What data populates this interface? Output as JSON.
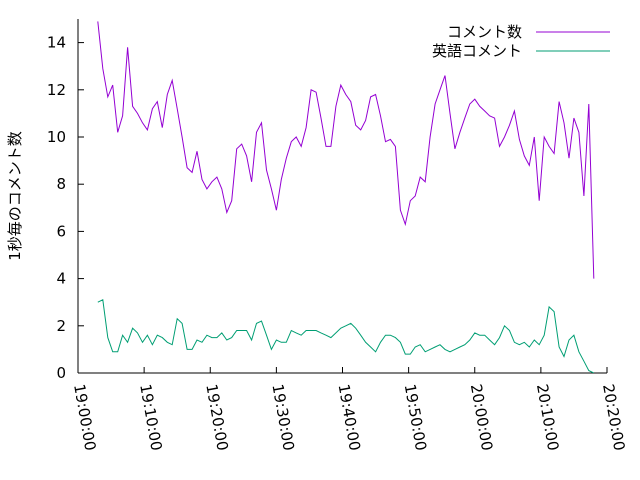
{
  "chart_data": {
    "type": "line",
    "y_label": "1秒毎のコメント数",
    "x": [
      "19:03:00",
      "19:03:45",
      "19:04:30",
      "19:05:15",
      "19:06:00",
      "19:06:45",
      "19:07:30",
      "19:08:15",
      "19:09:00",
      "19:09:45",
      "19:10:30",
      "19:11:15",
      "19:12:00",
      "19:12:45",
      "19:13:30",
      "19:14:15",
      "19:15:00",
      "19:15:45",
      "19:16:30",
      "19:17:15",
      "19:18:00",
      "19:18:45",
      "19:19:30",
      "19:20:15",
      "19:21:00",
      "19:21:45",
      "19:22:30",
      "19:23:15",
      "19:24:00",
      "19:24:45",
      "19:25:30",
      "19:26:15",
      "19:27:00",
      "19:27:45",
      "19:28:30",
      "19:29:15",
      "19:30:00",
      "19:30:45",
      "19:31:30",
      "19:32:15",
      "19:33:00",
      "19:33:45",
      "19:34:30",
      "19:35:15",
      "19:36:00",
      "19:36:45",
      "19:37:30",
      "19:38:15",
      "19:39:00",
      "19:39:45",
      "19:40:30",
      "19:41:15",
      "19:42:00",
      "19:42:45",
      "19:43:30",
      "19:44:15",
      "19:45:00",
      "19:45:45",
      "19:46:30",
      "19:47:15",
      "19:48:00",
      "19:48:45",
      "19:49:30",
      "19:50:15",
      "19:51:00",
      "19:51:45",
      "19:52:30",
      "19:53:15",
      "19:54:00",
      "19:54:45",
      "19:55:30",
      "19:56:15",
      "19:57:00",
      "19:57:45",
      "19:58:30",
      "19:59:15",
      "20:00:00",
      "20:00:45",
      "20:01:30",
      "20:02:15",
      "20:03:00",
      "20:03:45",
      "20:04:30",
      "20:05:15",
      "20:06:00",
      "20:06:45",
      "20:07:30",
      "20:08:15",
      "20:09:00",
      "20:09:45",
      "20:10:30",
      "20:11:15",
      "20:12:00",
      "20:12:45",
      "20:13:30",
      "20:14:15",
      "20:15:00",
      "20:15:45",
      "20:16:30",
      "20:17:15",
      "20:18:00"
    ],
    "series": [
      {
        "name": "コメント数",
        "color": "#9400d3",
        "values": [
          14.9,
          12.9,
          11.7,
          12.2,
          10.2,
          10.9,
          13.8,
          11.3,
          11,
          10.6,
          10.3,
          11.2,
          11.5,
          10.4,
          11.8,
          12.4,
          11.2,
          10.0,
          8.7,
          8.5,
          9.4,
          8.2,
          7.8,
          8.1,
          8.3,
          7.8,
          6.8,
          7.3,
          9.5,
          9.7,
          9.2,
          8.1,
          10.2,
          10.6,
          8.6,
          7.8,
          6.9,
          8.2,
          9.1,
          9.8,
          10,
          9.6,
          10.4,
          12,
          11.9,
          10.8,
          9.6,
          9.6,
          11.3,
          12.2,
          11.8,
          11.5,
          10.5,
          10.3,
          10.7,
          11.7,
          11.8,
          10.9,
          9.8,
          9.9,
          9.6,
          6.9,
          6.3,
          7.3,
          7.5,
          8.3,
          8.1,
          10,
          11.4,
          12.0,
          12.6,
          11,
          9.5,
          10.2,
          10.8,
          11.4,
          11.6,
          11.3,
          11.1,
          10.9,
          10.8,
          9.6,
          10,
          10.5,
          11.1,
          9.9,
          9.2,
          8.8,
          10,
          7.3,
          10,
          9.6,
          9.3,
          11.5,
          10.6,
          9.1,
          10.8,
          10.2,
          7.5,
          11.4,
          4
        ]
      },
      {
        "name": "英語コメント",
        "color": "#009e73",
        "values": [
          3.0,
          3.1,
          1.5,
          0.9,
          0.9,
          1.6,
          1.3,
          1.9,
          1.7,
          1.3,
          1.6,
          1.2,
          1.6,
          1.5,
          1.3,
          1.2,
          2.3,
          2.1,
          1.0,
          1.0,
          1.4,
          1.3,
          1.6,
          1.5,
          1.5,
          1.7,
          1.4,
          1.5,
          1.8,
          1.8,
          1.8,
          1.4,
          2.1,
          2.2,
          1.6,
          1.0,
          1.4,
          1.3,
          1.3,
          1.8,
          1.7,
          1.6,
          1.8,
          1.8,
          1.8,
          1.7,
          1.6,
          1.5,
          1.7,
          1.9,
          2.0,
          2.1,
          1.9,
          1.6,
          1.3,
          1.1,
          0.9,
          1.3,
          1.6,
          1.6,
          1.5,
          1.3,
          0.8,
          0.8,
          1.1,
          1.2,
          0.9,
          1.0,
          1.1,
          1.2,
          1.0,
          0.9,
          1.0,
          1.1,
          1.2,
          1.4,
          1.7,
          1.6,
          1.6,
          1.4,
          1.2,
          1.5,
          2.0,
          1.8,
          1.3,
          1.2,
          1.3,
          1.1,
          1.4,
          1.2,
          1.6,
          2.8,
          2.6,
          1.1,
          0.7,
          1.4,
          1.6,
          0.9,
          0.5,
          0.1,
          0
        ]
      }
    ],
    "xlim": [
      "19:00:00",
      "20:20:00"
    ],
    "xticks": [
      "19:00:00",
      "19:10:00",
      "19:20:00",
      "19:30:00",
      "19:40:00",
      "19:50:00",
      "20:00:00",
      "20:10:00",
      "20:20:00"
    ],
    "ylim": [
      0,
      15
    ],
    "yticks": [
      0,
      2,
      4,
      6,
      8,
      10,
      12,
      14
    ],
    "legend": "top-right",
    "grid": false
  }
}
